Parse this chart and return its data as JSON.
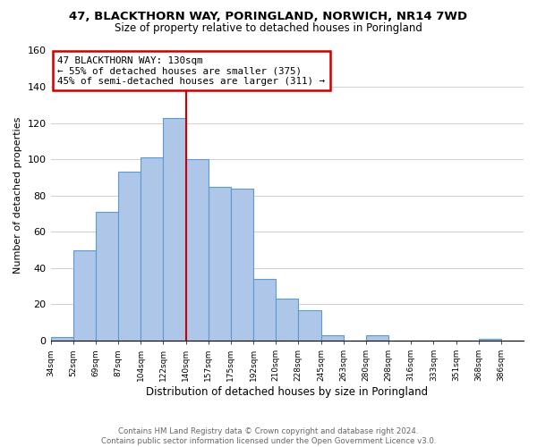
{
  "title": "47, BLACKTHORN WAY, PORINGLAND, NORWICH, NR14 7WD",
  "subtitle": "Size of property relative to detached houses in Poringland",
  "xlabel": "Distribution of detached houses by size in Poringland",
  "ylabel": "Number of detached properties",
  "footer_line1": "Contains HM Land Registry data © Crown copyright and database right 2024.",
  "footer_line2": "Contains public sector information licensed under the Open Government Licence v3.0.",
  "bins": [
    "34sqm",
    "52sqm",
    "69sqm",
    "87sqm",
    "104sqm",
    "122sqm",
    "140sqm",
    "157sqm",
    "175sqm",
    "192sqm",
    "210sqm",
    "228sqm",
    "245sqm",
    "263sqm",
    "280sqm",
    "298sqm",
    "316sqm",
    "333sqm",
    "351sqm",
    "368sqm",
    "386sqm"
  ],
  "counts": [
    2,
    50,
    71,
    93,
    101,
    123,
    100,
    85,
    84,
    34,
    23,
    17,
    3,
    0,
    3,
    0,
    0,
    0,
    0,
    1,
    0
  ],
  "bar_color": "#aec6e8",
  "bar_edge_color": "#5b9bd5",
  "property_label": "47 BLACKTHORN WAY: 130sqm",
  "annotation_line1": "← 55% of detached houses are smaller (375)",
  "annotation_line2": "45% of semi-detached houses are larger (311) →",
  "vline_color": "#cc0000",
  "annotation_box_edge_color": "#cc0000",
  "vline_bin_index": 6,
  "ylim": [
    0,
    160
  ],
  "yticks": [
    0,
    20,
    40,
    60,
    80,
    100,
    120,
    140,
    160
  ],
  "background_color": "#ffffff",
  "grid_color": "#d0d0d0"
}
